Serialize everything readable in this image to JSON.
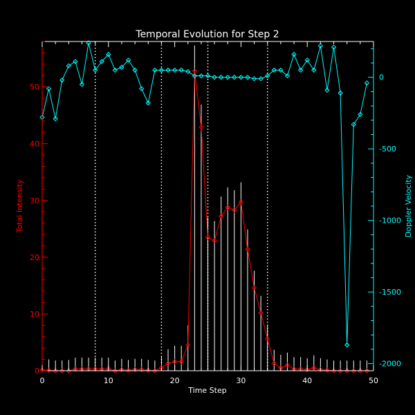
{
  "chart_data": {
    "type": "line",
    "title": "Temporal Evolution for Step 2",
    "xlabel": "Time Step",
    "ylabel": "Total Intensity",
    "y2label": "Doppler Velocity",
    "xlim": [
      0,
      50
    ],
    "ylim": [
      0,
      58
    ],
    "y2lim": [
      -2050,
      250
    ],
    "xticks": [
      0,
      10,
      20,
      30,
      40,
      50
    ],
    "yticks": [
      0,
      10,
      20,
      30,
      40,
      50
    ],
    "y2ticks": [
      -2000,
      -1500,
      -1000,
      -500,
      0
    ],
    "vlines": [
      8,
      18,
      25,
      34
    ],
    "colors": {
      "axes": "#ffffff",
      "intensity": "#ff0000",
      "velocity": "#00ffff",
      "background": "#000000"
    },
    "series": [
      {
        "name": "Total Intensity",
        "axis": "left",
        "x": [
          0,
          1,
          2,
          3,
          4,
          5,
          6,
          7,
          8,
          9,
          10,
          11,
          12,
          13,
          14,
          15,
          16,
          17,
          18,
          19,
          20,
          21,
          22,
          23,
          24,
          25,
          26,
          27,
          28,
          29,
          30,
          31,
          32,
          33,
          34,
          35,
          36,
          37,
          38,
          39,
          40,
          41,
          42,
          43,
          44,
          45,
          46,
          47,
          48,
          49
        ],
        "values": [
          0.1,
          0.1,
          0,
          0,
          0,
          0.3,
          0.3,
          0.3,
          0.3,
          0.3,
          0.3,
          0,
          0.2,
          0.1,
          0.2,
          0.2,
          0.1,
          0,
          0.5,
          1.3,
          1.6,
          1.6,
          4.5,
          52.8,
          42.9,
          23.5,
          22.9,
          27.2,
          28.8,
          28.3,
          29.7,
          21.4,
          14.6,
          10.2,
          5.6,
          1.3,
          0.5,
          1.0,
          0.3,
          0.3,
          0.2,
          0.5,
          0.2,
          0.1,
          0,
          0,
          0,
          0,
          0,
          0
        ],
        "errors": [
          1.8,
          1.9,
          1.8,
          1.8,
          1.9,
          2.0,
          2.0,
          2.0,
          2.0,
          2.0,
          2.0,
          1.8,
          1.9,
          1.8,
          1.9,
          1.9,
          1.8,
          1.8,
          2.0,
          2.5,
          2.8,
          2.8,
          3.5,
          4.5,
          4.0,
          3.5,
          3.5,
          3.5,
          3.5,
          3.5,
          3.5,
          3.5,
          3.0,
          3.0,
          2.5,
          2.4,
          2.3,
          2.2,
          2.1,
          2.1,
          2.0,
          2.2,
          2.0,
          1.9,
          1.8,
          1.8,
          1.8,
          1.8,
          1.8,
          1.8
        ],
        "labeled": false
      },
      {
        "name": "Doppler Velocity",
        "axis": "right",
        "x": [
          0,
          1,
          2,
          3,
          4,
          5,
          6,
          7,
          8,
          9,
          10,
          11,
          12,
          13,
          14,
          15,
          16,
          17,
          18,
          19,
          20,
          21,
          22,
          23,
          24,
          25,
          26,
          27,
          28,
          29,
          30,
          31,
          32,
          33,
          34,
          35,
          36,
          37,
          38,
          39,
          40,
          41,
          42,
          43,
          44,
          45,
          46,
          47,
          48,
          49
        ],
        "values": [
          -280,
          -80,
          -290,
          -20,
          80,
          110,
          -50,
          240,
          50,
          110,
          160,
          50,
          70,
          120,
          50,
          -80,
          -180,
          50,
          50,
          50,
          50,
          50,
          40,
          10,
          10,
          10,
          0,
          0,
          0,
          0,
          0,
          0,
          -10,
          -10,
          10,
          50,
          50,
          10,
          160,
          50,
          120,
          50,
          220,
          -90,
          210,
          -110,
          -1870,
          -330,
          -260,
          -40
        ],
        "labeled": false
      }
    ]
  }
}
